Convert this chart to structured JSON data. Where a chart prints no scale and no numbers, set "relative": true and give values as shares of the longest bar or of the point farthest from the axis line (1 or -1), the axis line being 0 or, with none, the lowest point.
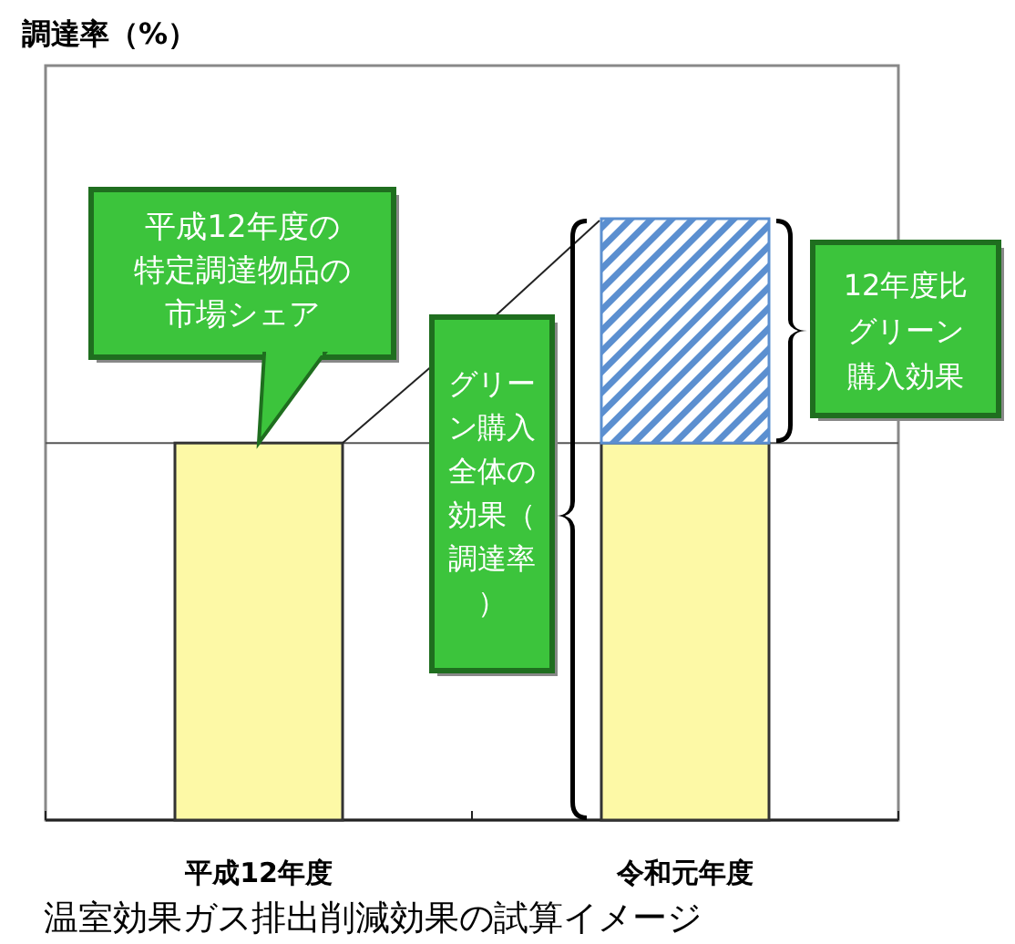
{
  "chart_data": {
    "type": "bar",
    "relative": true,
    "stacked": true,
    "categories": [
      "平成12年度",
      "令和元年度"
    ],
    "series": [
      {
        "color": "#fdf9a6",
        "values": [
          0.627,
          0.627
        ]
      },
      {
        "color": "#5b8fd0",
        "values": [
          null,
          0.373
        ]
      }
    ],
    "ref_lines": [
      {
        "axis": "y",
        "value": 0.627,
        "color": "#555555"
      }
    ],
    "annotations": [
      "平成12年度の特定調達物品の市場シェア",
      "グリーン購入全体の効果（調達率）",
      "12年度比グリーン購入効果",
      "温室効果ガス排出削減効果の試算イメージ",
      "調達率（%）"
    ]
  }
}
